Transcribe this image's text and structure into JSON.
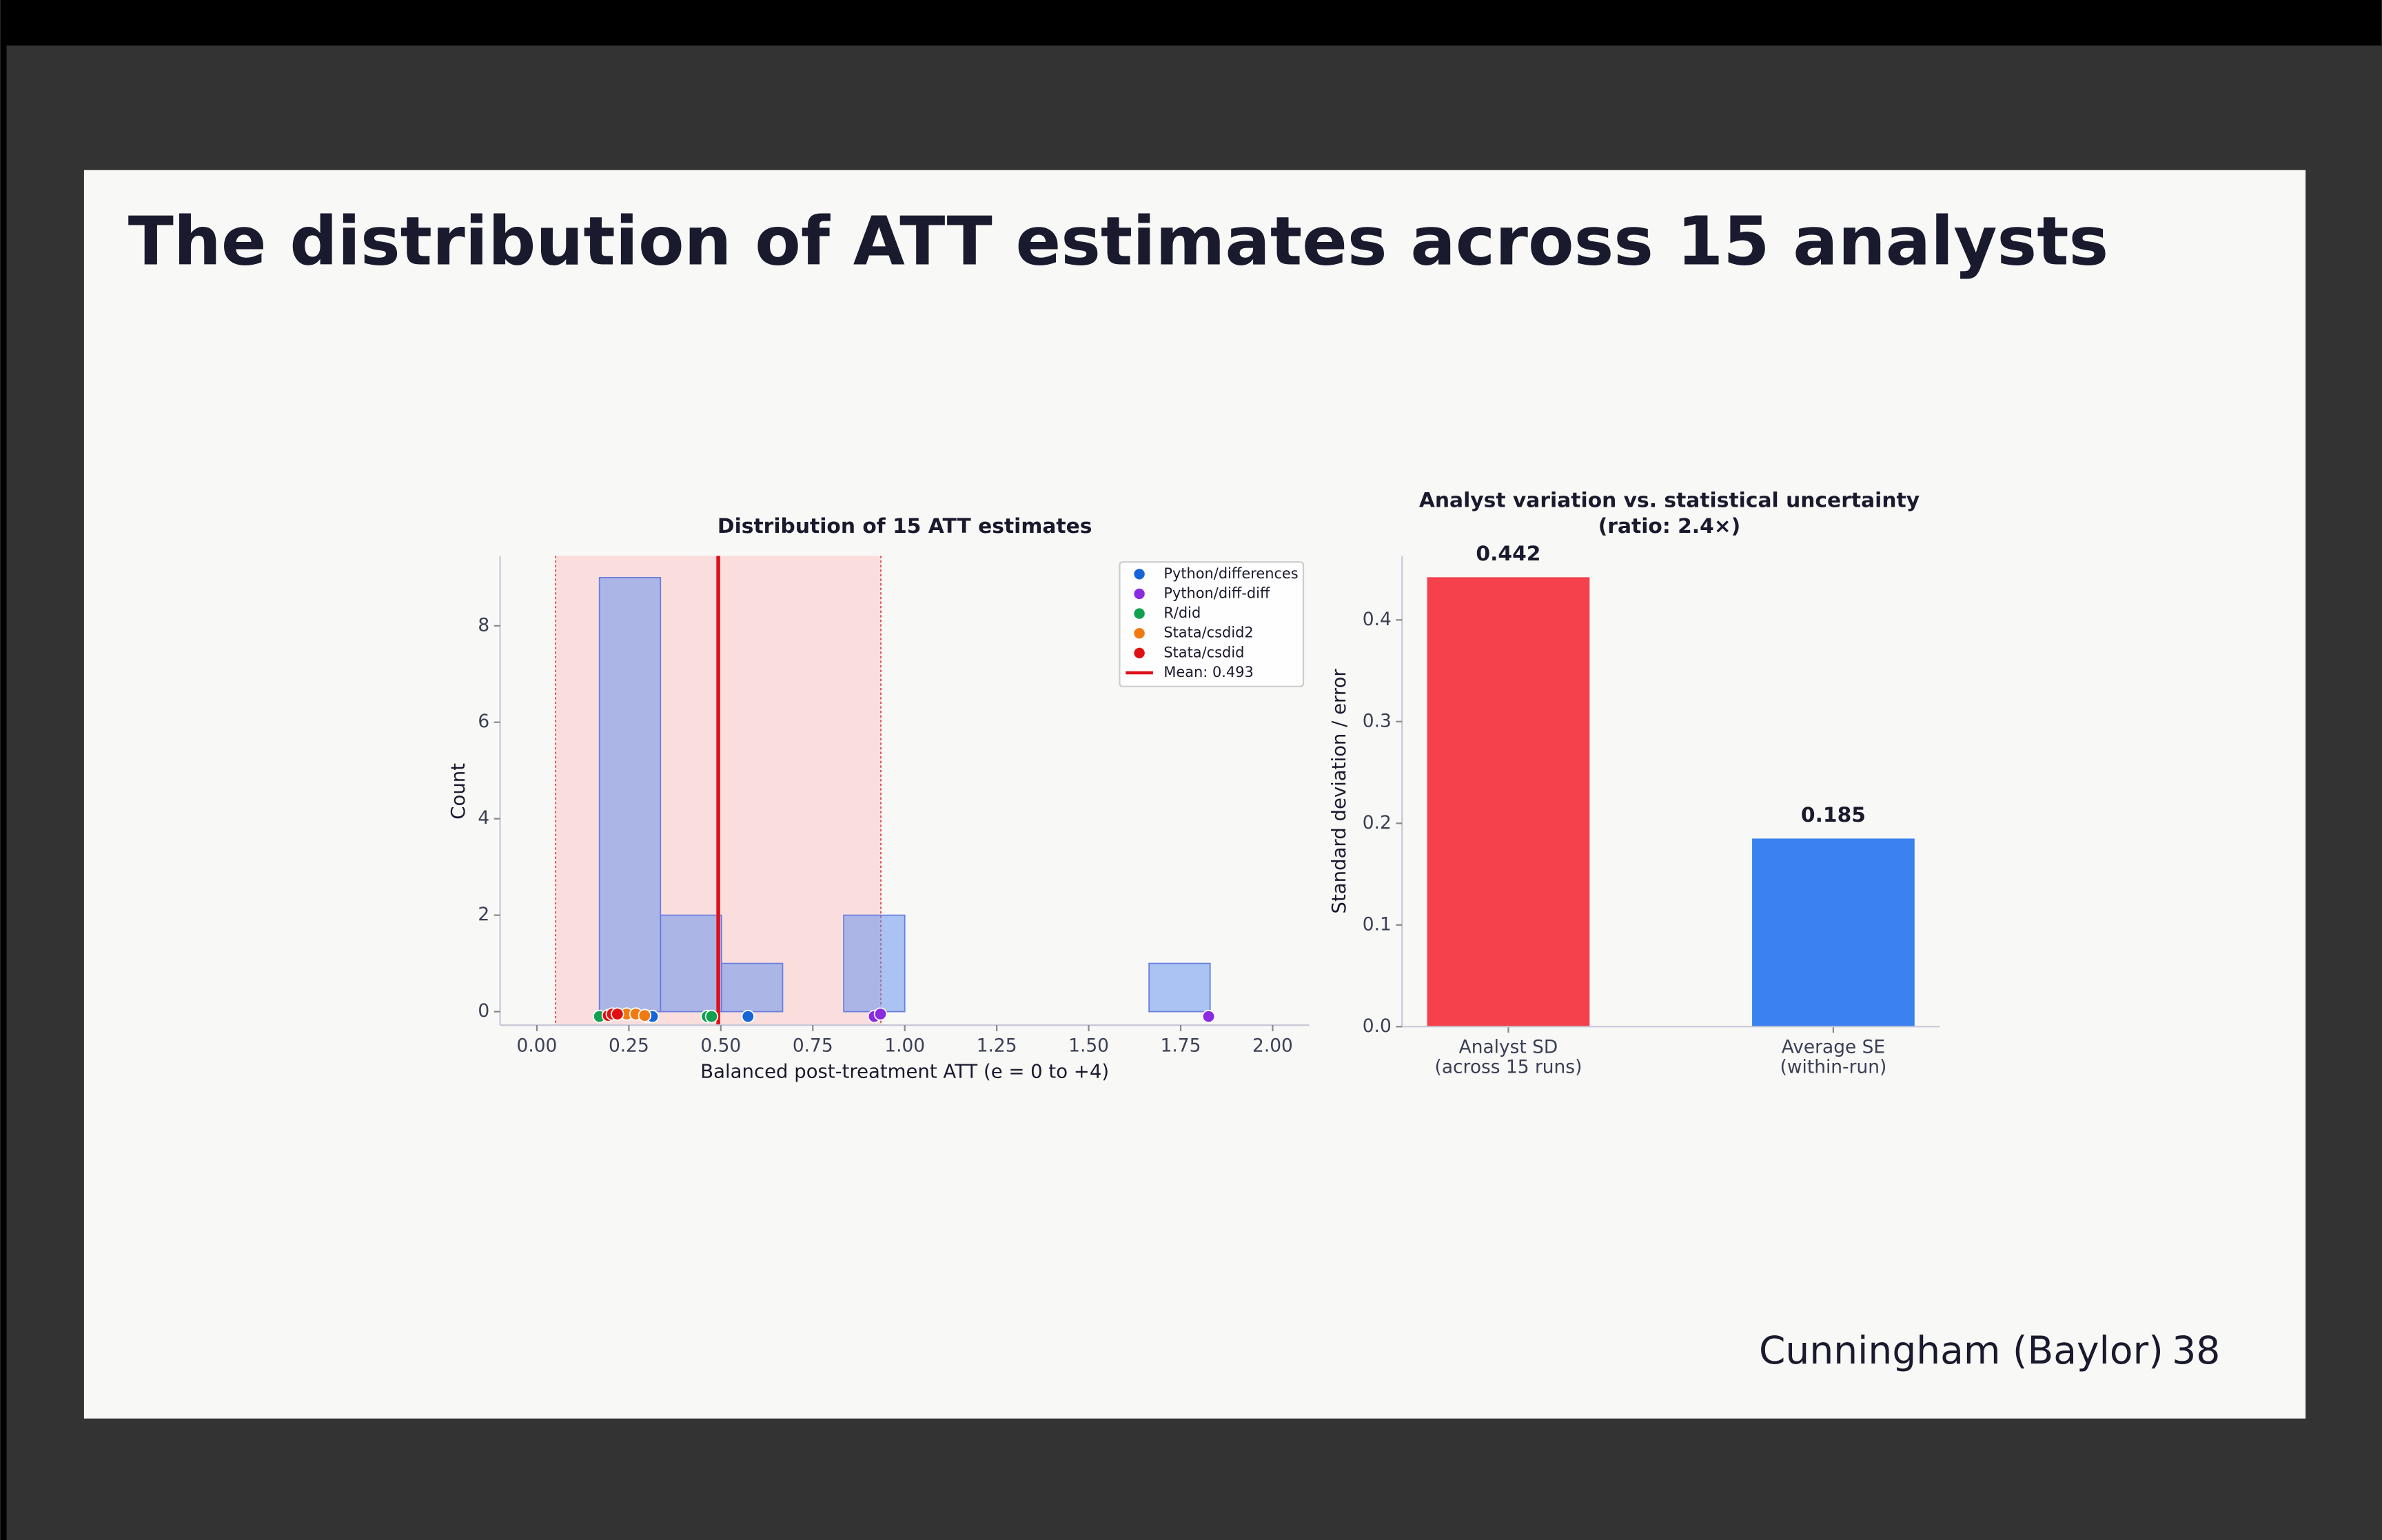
{
  "slide": {
    "title": "The distribution of ATT estimates across 15 analysts",
    "author": "Cunningham (Baylor)",
    "page": 38
  },
  "chart_data": [
    {
      "type": "histogram",
      "title": "Distribution of 15 ATT estimates",
      "x_label": "Balanced post-treatment ATT (e = 0 to +4)",
      "y_label": "Count",
      "bins": [
        0.17,
        0.336,
        0.502,
        0.668,
        0.834,
        1.0,
        1.166,
        1.332,
        1.498,
        1.664,
        1.83
      ],
      "values": [
        9,
        2,
        1,
        0,
        2,
        0,
        0,
        0,
        0,
        1
      ],
      "color": "#5b8def",
      "xlim": [
        -0.1,
        2.1
      ],
      "ylim": [
        -0.28,
        9.45
      ],
      "xticks": [
        {
          "value": 0,
          "label": "0.00"
        },
        0.25,
        {
          "value": 0.5,
          "label": "0.50"
        },
        0.75,
        {
          "value": 1,
          "label": "1.00"
        },
        1.25,
        {
          "value": 1.5,
          "label": "1.50"
        },
        1.75,
        {
          "value": 2,
          "label": "2.00"
        }
      ],
      "yticks": [
        0,
        2,
        4,
        6,
        8
      ],
      "shaded_range": [
        0.051,
        0.935
      ],
      "mean": {
        "value": 0.493,
        "label": "Mean: 0.493",
        "color": "#e0101a"
      },
      "legend": "upper right",
      "series": [
        {
          "name": "Python/differences",
          "color": "#1565d8",
          "x": [
            0.3,
            0.314,
            0.574
          ],
          "y": [
            -0.1,
            -0.1,
            -0.1
          ]
        },
        {
          "name": "Python/diff-diff",
          "color": "#8a2be2",
          "x": [
            0.917,
            0.934,
            1.826
          ],
          "y": [
            -0.1,
            -0.05,
            -0.1
          ]
        },
        {
          "name": "R/did",
          "color": "#10a050",
          "x": [
            0.17,
            0.463,
            0.475
          ],
          "y": [
            -0.1,
            -0.1,
            -0.1
          ]
        },
        {
          "name": "Stata/csdid2",
          "color": "#f07a10",
          "x": [
            0.244,
            0.269,
            0.293
          ],
          "y": [
            -0.05,
            -0.05,
            -0.08
          ]
        },
        {
          "name": "Stata/csdid",
          "color": "#e01010",
          "x": [
            0.194,
            0.205,
            0.219
          ],
          "y": [
            -0.08,
            -0.05,
            -0.05
          ]
        }
      ]
    },
    {
      "type": "bar",
      "title": "Analyst variation vs. statistical uncertainty",
      "subtitle": "(ratio: 2.4×)",
      "y_label": "Standard deviation / error",
      "categories": [
        [
          "Analyst SD",
          "(across 15 runs)"
        ],
        [
          "Average SE",
          "(within-run)"
        ]
      ],
      "values": [
        0.442,
        0.185
      ],
      "colors": [
        "#f4414b",
        "#3b82f0"
      ],
      "ylim": [
        0,
        0.463
      ],
      "yticks": [
        {
          "value": 0,
          "label": "0.0"
        },
        0.1,
        0.2,
        0.3,
        0.4
      ]
    }
  ]
}
